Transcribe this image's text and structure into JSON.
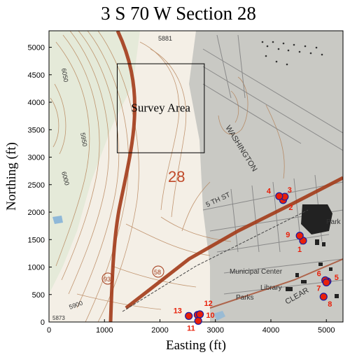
{
  "title": "3 S 70 W Section 28",
  "axes": {
    "xlabel": "Easting (ft)",
    "ylabel": "Northing (ft)",
    "xticks": [
      "0",
      "1000",
      "2000",
      "3000",
      "4000",
      "5000"
    ],
    "yticks": [
      "0",
      "500",
      "1000",
      "1500",
      "2000",
      "2500",
      "3000",
      "3500",
      "4000",
      "4500",
      "5000"
    ]
  },
  "survey_area": {
    "label": "Survey Area",
    "x": [
      1230,
      2800
    ],
    "y": [
      3080,
      4700
    ]
  },
  "map_text": {
    "section_number": "28",
    "washington": "WASHINGTON",
    "fifth_st": "5 TH  ST",
    "municipal_center": "Municipal Center",
    "library": "Library",
    "parks": "Parks",
    "park": "Park",
    "clear": "CLEAR",
    "elev_5881": "5881",
    "elev_6050": "6050",
    "elev_6000": "6000",
    "elev_5950": "5950",
    "elev_5900": "5900",
    "elev_5873": "5873",
    "route_93": "93",
    "route_58": "58"
  },
  "chart_data": {
    "type": "scatter",
    "title": "3 S 70 W Section 28",
    "xlabel": "Easting (ft)",
    "ylabel": "Northing (ft)",
    "xlim": [
      0,
      5300
    ],
    "ylim": [
      0,
      5300
    ],
    "points": [
      {
        "label": "1",
        "x": 4580,
        "y": 1480
      },
      {
        "label": "2",
        "x": 4220,
        "y": 2220
      },
      {
        "label": "3",
        "x": 4250,
        "y": 2280
      },
      {
        "label": "4",
        "x": 4150,
        "y": 2290
      },
      {
        "label": "5",
        "x": 5020,
        "y": 740
      },
      {
        "label": "6",
        "x": 4980,
        "y": 760
      },
      {
        "label": "7",
        "x": 5000,
        "y": 720
      },
      {
        "label": "8",
        "x": 4950,
        "y": 460
      },
      {
        "label": "9",
        "x": 4520,
        "y": 1570
      },
      {
        "label": "10",
        "x": 2680,
        "y": 130
      },
      {
        "label": "11",
        "x": 2690,
        "y": 20
      },
      {
        "label": "12",
        "x": 2720,
        "y": 140
      },
      {
        "label": "13",
        "x": 2520,
        "y": 110
      }
    ],
    "marker_color": "#e8200a"
  }
}
